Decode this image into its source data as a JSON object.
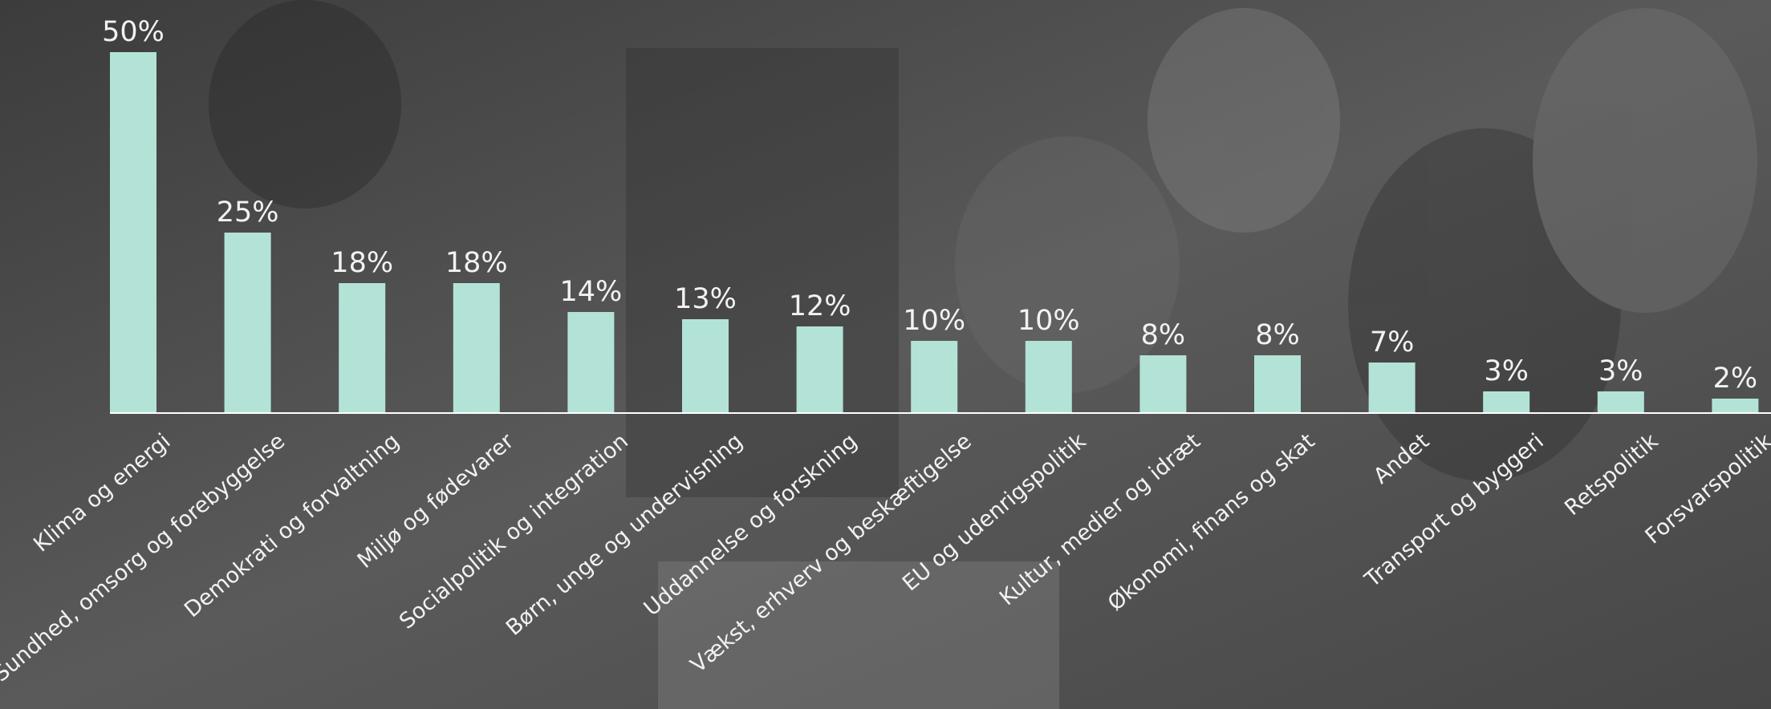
{
  "chart_data": {
    "type": "bar",
    "categories": [
      "Klima og energi",
      "Sundhed, omsorg og forebyggelse",
      "Demokrati og forvaltning",
      "Miljø og fødevarer",
      "Socialpolitik og integration",
      "Børn, unge og undervisning",
      "Uddannelse og forskning",
      "Vækst, erhverv og beskæftigelse",
      "EU og udenrigspolitik",
      "Kultur, medier og idræt",
      "Økonomi, finans og skat",
      "Andet",
      "Transport og byggeri",
      "Retspolitik",
      "Forsvarspolitik"
    ],
    "values": [
      50,
      25,
      18,
      18,
      14,
      13,
      12,
      10,
      10,
      8,
      8,
      7,
      3,
      3,
      2
    ],
    "value_labels": [
      "50%",
      "25%",
      "18%",
      "18%",
      "14%",
      "13%",
      "12%",
      "10%",
      "10%",
      "8%",
      "8%",
      "7%",
      "3%",
      "3%",
      "2%"
    ],
    "color": "#b3e3d7"
  }
}
